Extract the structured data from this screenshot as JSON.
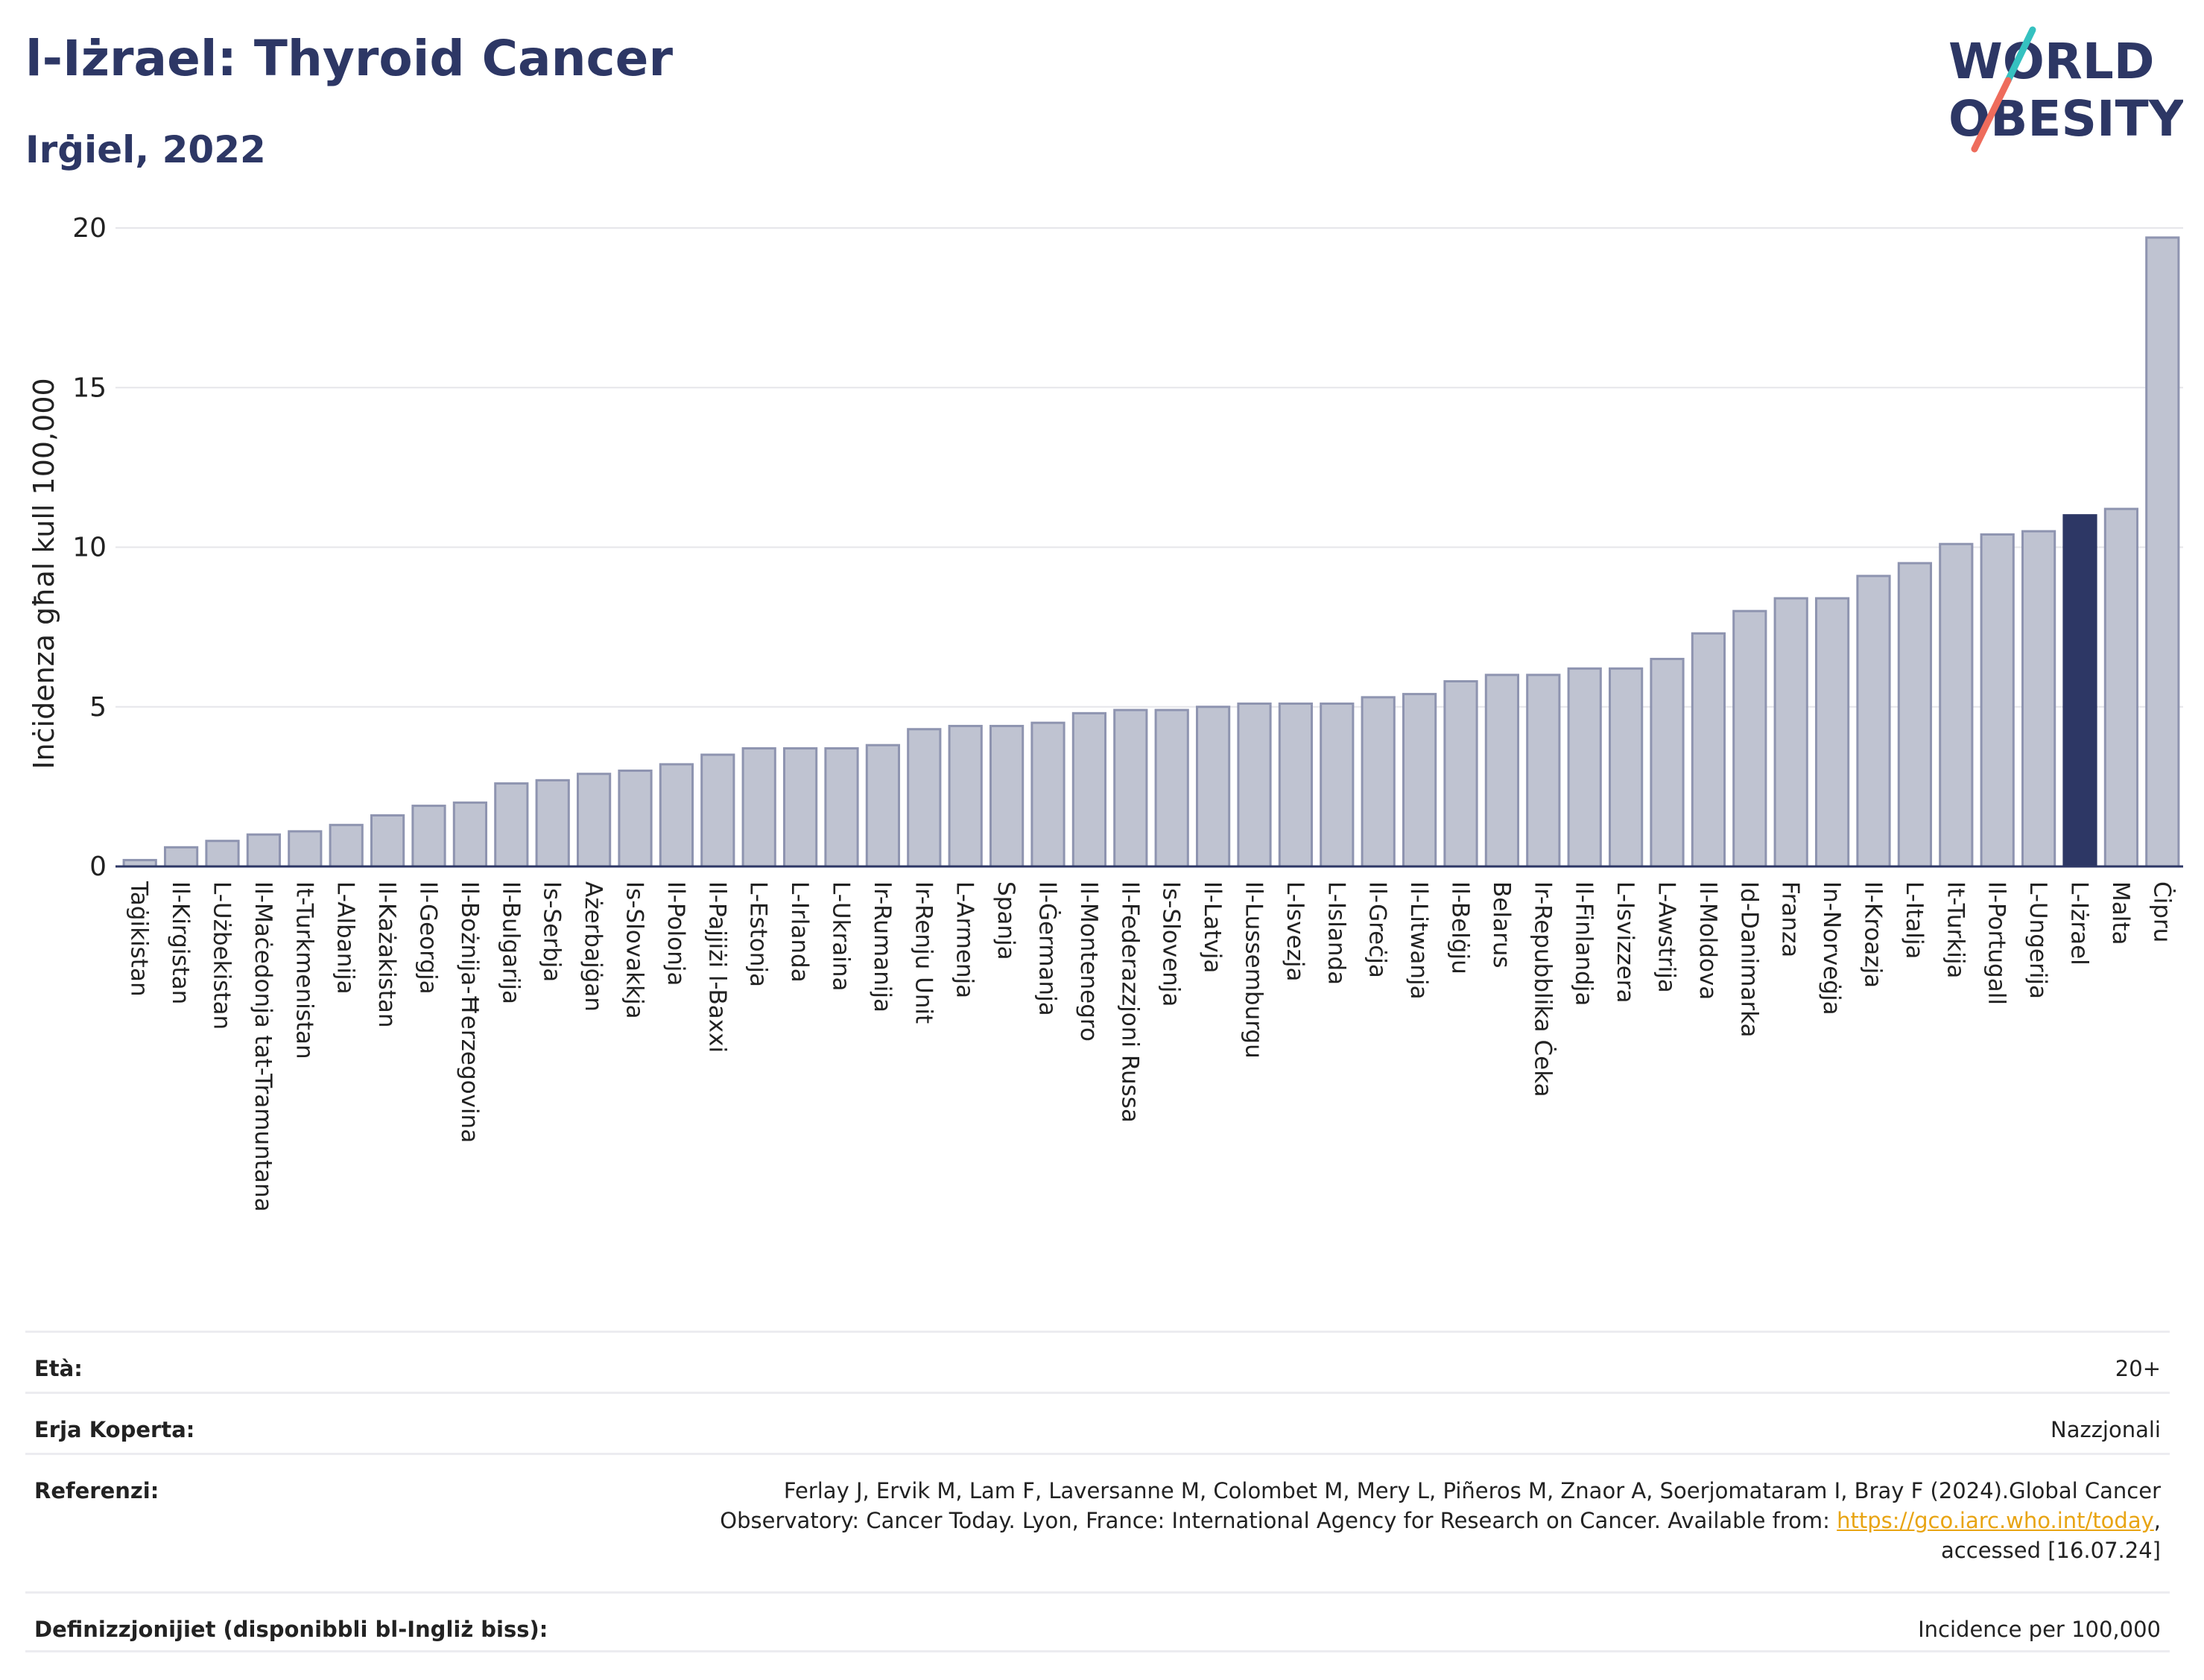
{
  "header": {
    "title": "l-Iżrael: Thyroid Cancer",
    "subtitle": "Irġiel, 2022"
  },
  "logo": {
    "line1": "WORLD",
    "line2": "OBESITY"
  },
  "colors": {
    "bar": "#bfc3d1",
    "bar_stroke": "#8e94b0",
    "highlight": "#2d3765",
    "grid": "#e6e6ea",
    "axis": "#2d3765",
    "logo_text": "#2d3765",
    "logo_teal": "#35c1c0",
    "logo_coral": "#ee6c5c",
    "link": "#e8a413"
  },
  "chart_data": {
    "type": "bar",
    "title": "l-Iżrael: Thyroid Cancer",
    "subtitle": "Irġiel, 2022",
    "ylabel": "Inċidenza għal kull 100,000",
    "xlabel": "",
    "ylim": [
      0,
      20
    ],
    "yticks": [
      0,
      5,
      10,
      15,
      20
    ],
    "grid": true,
    "highlight": "L-Iżrael",
    "categories": [
      "Taġikistan",
      "Il-Kirgistan",
      "L-Użbekistan",
      "Il-Maċedonja tat-Tramuntana",
      "It-Turkmenistan",
      "L-Albanija",
      "Il-Każakistan",
      "Il-Georgja",
      "Il-Bożnija-Ħerzegovina",
      "Il-Bulgarija",
      "Is-Serbja",
      "Ażerbajġan",
      "Is-Slovakkja",
      "Il-Polonja",
      "Il-Pajjiżi l-Baxxi",
      "L-Estonja",
      "L-Irlanda",
      "L-Ukraina",
      "Ir-Rumanija",
      "Ir-Renju Unit",
      "L-Armenja",
      "Spanja",
      "Il-Ġermanja",
      "Il-Montenegro",
      "Il-Federazzjoni Russa",
      "Is-Slovenja",
      "Il-Latvja",
      "Il-Lussemburgu",
      "L-Isvezja",
      "L-Islanda",
      "Il-Greċja",
      "Il-Litwanja",
      "Il-Belġju",
      "Belarus",
      "Ir-Repubblika Ċeka",
      "Il-Finlandja",
      "L-Isvizzera",
      "L-Awstrija",
      "Il-Moldova",
      "Id-Danimarka",
      "Franza",
      "In-Norveġja",
      "Il-Kroazja",
      "L-Italja",
      "It-Turkija",
      "Il-Portugall",
      "L-Ungerija",
      "L-Iżrael",
      "Malta",
      "Ċipru"
    ],
    "values": [
      0.2,
      0.6,
      0.8,
      1.0,
      1.1,
      1.3,
      1.6,
      1.9,
      2.0,
      2.6,
      2.7,
      2.9,
      3.0,
      3.2,
      3.5,
      3.7,
      3.7,
      3.7,
      3.8,
      4.3,
      4.4,
      4.4,
      4.5,
      4.8,
      4.9,
      4.9,
      5.0,
      5.1,
      5.1,
      5.1,
      5.3,
      5.4,
      5.8,
      6.0,
      6.0,
      6.2,
      6.2,
      6.5,
      7.3,
      8.0,
      8.4,
      8.4,
      9.1,
      9.5,
      10.1,
      10.4,
      10.5,
      11.0,
      11.2,
      19.7
    ]
  },
  "meta": {
    "age_label": "Età:",
    "age_value": "20+",
    "area_label": "Erja Koperta:",
    "area_value": "Nazzjonali",
    "ref_label": "Referenzi:",
    "ref_text1": "Ferlay J, Ervik M, Lam F, Laversanne M, Colombet M, Mery L, Piñeros M, Znaor A, Soerjomataram I, Bray F (2024).Global Cancer",
    "ref_text2": "Observatory: Cancer Today. Lyon, France: International Agency for Research on Cancer. Available from: ",
    "ref_link": "https://gco.iarc.who.int/today",
    "ref_text3": ",",
    "ref_text4": "accessed [16.07.24]",
    "def_label": "Definizzjonijiet (disponibbli bl-Ingliż biss):",
    "def_value": "Incidence per 100,000"
  }
}
